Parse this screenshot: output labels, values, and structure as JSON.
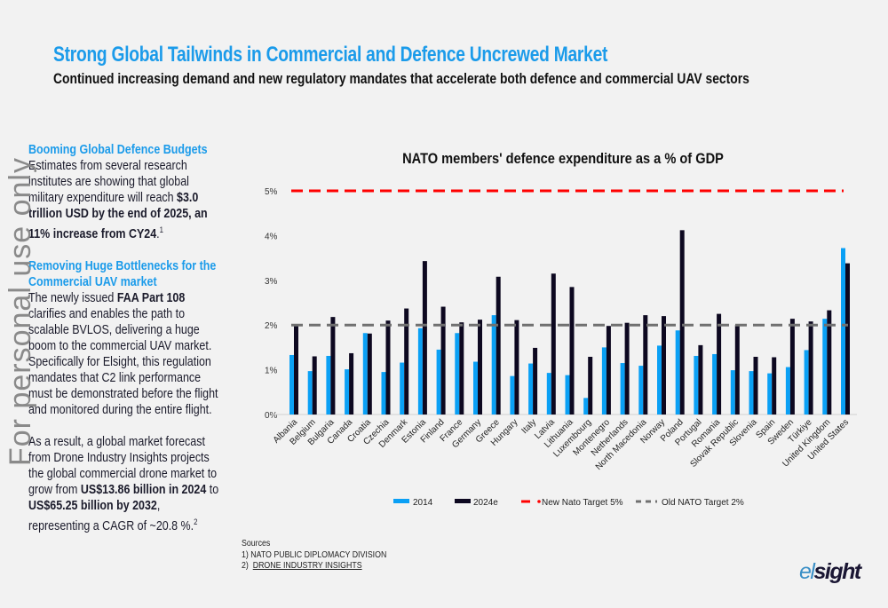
{
  "header": {
    "title": "Strong Global Tailwinds in Commercial and Defence Uncrewed Market",
    "subtitle": "Continued increasing demand and new regulatory mandates that accelerate both defence and commercial UAV sectors"
  },
  "watermark": "For personal use only",
  "left_column": {
    "section1": {
      "heading": "Booming Global Defence Budgets",
      "text": "Estimates from several research institutes are showing that global military expenditure will reach ",
      "bold": "$3.0 trillion USD by the end of 2025, an 11% increase from CY24",
      "tail": ".",
      "sup": "1"
    },
    "section2": {
      "heading": "Removing Huge Bottlenecks for the Commercial UAV market",
      "text_pre": "The newly issued ",
      "bold": "FAA Part 108",
      "text_post": " clarifies and enables the path to scalable BVLOS, delivering a huge boom to the commercial UAV market. Specifically for Elsight, this regulation mandates that C2 link performance must be demonstrated before the flight and monitored during the entire flight."
    },
    "section3": {
      "text_pre": "As a result, a global market forecast from Drone Industry Insights projects the global commercial drone market to grow from ",
      "bold1": "US$13.86 billion in 2024",
      "text_mid": " to ",
      "bold2": "US$65.25 billion by 2032",
      "text_post": ", representing a CAGR of ~20.8 %.",
      "sup": "2"
    }
  },
  "sources": {
    "label": "Sources",
    "items": [
      "1)  NATO PUBLIC DIPLOMACY DIVISION",
      "2)  "
    ],
    "link": "DRONE INDUSTRY INSIGHTS"
  },
  "logo": {
    "part1": "el",
    "part2": "sight"
  },
  "colors": {
    "series2014": "#0aa0f5",
    "series2024e": "#0d0820",
    "new_target": "#ff0000",
    "old_target": "#707070",
    "title": "#1b9bea"
  },
  "chart_data": {
    "type": "bar",
    "title": "NATO members' defence expenditure as a % of GDP",
    "xlabel": "",
    "ylabel": "",
    "ylim": [
      0,
      5
    ],
    "yticks": [
      "0%",
      "1%",
      "2%",
      "3%",
      "4%",
      "5%"
    ],
    "grid": false,
    "legend_position": "bottom",
    "categories": [
      "Albania",
      "Belgium",
      "Bulgaria",
      "Canada",
      "Croatia",
      "Czechia",
      "Denmark",
      "Estonia",
      "Finland",
      "France",
      "Germany",
      "Greece",
      "Hungary",
      "Italy",
      "Latvia",
      "Lithuania",
      "Luxembourg",
      "Montenegro",
      "Netherlands",
      "North Macedonia",
      "Norway",
      "Poland",
      "Portugal",
      "Romania",
      "Slovak Republic",
      "Slovenia",
      "Spain",
      "Sweden",
      "Türkiye",
      "United Kingdom",
      "United States"
    ],
    "series": [
      {
        "name": "2014",
        "values": [
          1.33,
          0.97,
          1.31,
          1.01,
          1.82,
          0.95,
          1.16,
          1.93,
          1.45,
          1.82,
          1.18,
          2.22,
          0.86,
          1.14,
          0.93,
          0.88,
          0.37,
          1.5,
          1.15,
          1.09,
          1.54,
          1.88,
          1.31,
          1.35,
          0.99,
          0.97,
          0.92,
          1.06,
          1.44,
          2.14,
          3.72
        ]
      },
      {
        "name": "2024e",
        "values": [
          2.0,
          1.3,
          2.18,
          1.37,
          1.81,
          2.1,
          2.37,
          3.43,
          2.41,
          2.06,
          2.12,
          3.08,
          2.11,
          1.49,
          3.15,
          2.85,
          1.29,
          1.98,
          2.05,
          2.22,
          2.2,
          4.12,
          1.55,
          2.25,
          2.0,
          1.29,
          1.28,
          2.14,
          2.08,
          2.33,
          3.38
        ]
      }
    ],
    "reference_lines": [
      {
        "name": "New Nato Target 5%",
        "value": 5
      },
      {
        "name": "Old NATO Target 2%",
        "value": 2
      }
    ]
  }
}
